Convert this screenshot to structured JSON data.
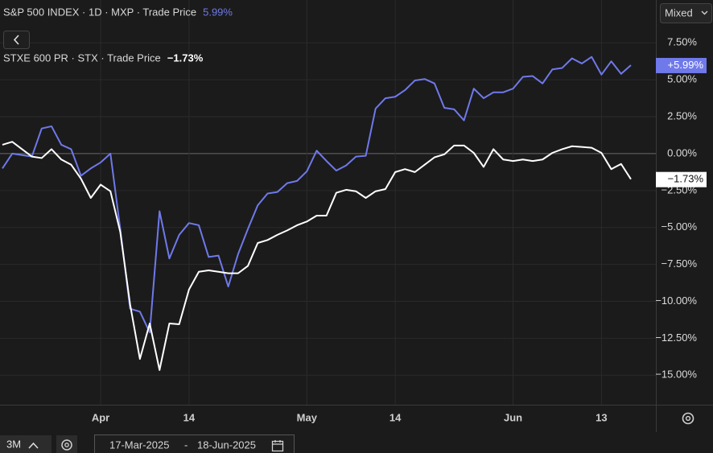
{
  "chart_data": {
    "type": "line",
    "x": [
      "2025-03-18",
      "2025-03-19",
      "2025-03-20",
      "2025-03-21",
      "2025-03-24",
      "2025-03-25",
      "2025-03-26",
      "2025-03-27",
      "2025-03-28",
      "2025-03-31",
      "2025-04-01",
      "2025-04-02",
      "2025-04-03",
      "2025-04-04",
      "2025-04-07",
      "2025-04-08",
      "2025-04-09",
      "2025-04-10",
      "2025-04-11",
      "2025-04-14",
      "2025-04-15",
      "2025-04-16",
      "2025-04-17",
      "2025-04-21",
      "2025-04-22",
      "2025-04-23",
      "2025-04-24",
      "2025-04-25",
      "2025-04-28",
      "2025-04-29",
      "2025-04-30",
      "2025-05-01",
      "2025-05-02",
      "2025-05-05",
      "2025-05-06",
      "2025-05-07",
      "2025-05-08",
      "2025-05-09",
      "2025-05-12",
      "2025-05-13",
      "2025-05-14",
      "2025-05-15",
      "2025-05-16",
      "2025-05-19",
      "2025-05-20",
      "2025-05-21",
      "2025-05-22",
      "2025-05-23",
      "2025-05-27",
      "2025-05-28",
      "2025-05-29",
      "2025-05-30",
      "2025-06-02",
      "2025-06-03",
      "2025-06-04",
      "2025-06-05",
      "2025-06-06",
      "2025-06-09",
      "2025-06-10",
      "2025-06-11",
      "2025-06-12",
      "2025-06-13",
      "2025-06-16",
      "2025-06-17",
      "2025-06-18"
    ],
    "xticks": [
      {
        "value": "2025-04-01",
        "label": "Apr"
      },
      {
        "value": "2025-04-14",
        "label": "14"
      },
      {
        "value": "2025-05-01",
        "label": "May"
      },
      {
        "value": "2025-05-14",
        "label": "14"
      },
      {
        "value": "2025-06-02",
        "label": "Jun"
      },
      {
        "value": "2025-06-13",
        "label": "13"
      }
    ],
    "series": [
      {
        "name": "S&P 500 INDEX · 1D · MXP · Trade Price",
        "color": "#6f79ea",
        "last_value_label": "5.99%",
        "tag_label": "+5.99%",
        "values": [
          -1.0,
          0.0,
          -0.1,
          -0.2,
          1.7,
          1.85,
          0.6,
          0.3,
          -1.5,
          -1.0,
          -0.6,
          0.0,
          -5.1,
          -10.5,
          -10.7,
          -12.1,
          -3.9,
          -7.1,
          -5.5,
          -4.7,
          -4.85,
          -7.0,
          -6.9,
          -9.0,
          -6.8,
          -5.1,
          -3.5,
          -2.7,
          -2.6,
          -2.0,
          -1.85,
          -1.2,
          0.2,
          -0.5,
          -1.15,
          -0.8,
          -0.2,
          -0.15,
          3.05,
          3.75,
          3.85,
          4.3,
          4.95,
          5.05,
          4.75,
          3.1,
          3.0,
          2.25,
          4.4,
          3.75,
          4.15,
          4.15,
          4.4,
          5.2,
          5.25,
          4.75,
          5.7,
          5.8,
          6.45,
          6.1,
          6.55,
          5.35,
          6.25,
          5.4,
          5.99
        ]
      },
      {
        "name": "STXE 600 PR · STX · Trade Price",
        "color": "#ffffff",
        "last_value_label": "−1.73%",
        "tag_label": "−1.73%",
        "values": [
          0.6,
          0.8,
          0.3,
          -0.2,
          -0.3,
          0.3,
          -0.4,
          -0.75,
          -1.7,
          -3.0,
          -2.1,
          -2.55,
          -5.3,
          -10.2,
          -13.9,
          -11.5,
          -14.65,
          -11.5,
          -11.55,
          -9.2,
          -8.0,
          -7.9,
          -8.0,
          -8.1,
          -8.1,
          -7.6,
          -6.05,
          -5.85,
          -5.5,
          -5.2,
          -4.85,
          -4.6,
          -4.2,
          -4.2,
          -2.65,
          -2.45,
          -2.55,
          -3.0,
          -2.55,
          -2.4,
          -1.25,
          -1.05,
          -1.25,
          -0.75,
          -0.25,
          -0.05,
          0.55,
          0.55,
          0.05,
          -0.9,
          0.3,
          -0.4,
          -0.5,
          -0.4,
          -0.5,
          -0.4,
          0.05,
          0.3,
          0.5,
          0.45,
          0.4,
          0.05,
          -1.05,
          -0.7,
          -1.73
        ]
      }
    ],
    "ylim": [
      -17.0,
      10.4
    ],
    "yticks": [
      {
        "value": 7.5,
        "label": "7.50%"
      },
      {
        "value": 5,
        "label": "5.00%"
      },
      {
        "value": 2.5,
        "label": "2.50%"
      },
      {
        "value": 0,
        "label": "0.00%"
      },
      {
        "value": -2.5,
        "label": "−2.50%"
      },
      {
        "value": -5,
        "label": "−5.00%"
      },
      {
        "value": -7.5,
        "label": "−7.50%"
      },
      {
        "value": -10,
        "label": "−10.00%"
      },
      {
        "value": -12.5,
        "label": "−12.50%"
      },
      {
        "value": -15,
        "label": "−15.00%"
      }
    ],
    "grid": true
  },
  "toolbar": {
    "scale_mode": "Mixed",
    "range_button": "3M",
    "date_from": "17-Mar-2025",
    "date_separator": "-",
    "date_to": "18-Jun-2025"
  }
}
